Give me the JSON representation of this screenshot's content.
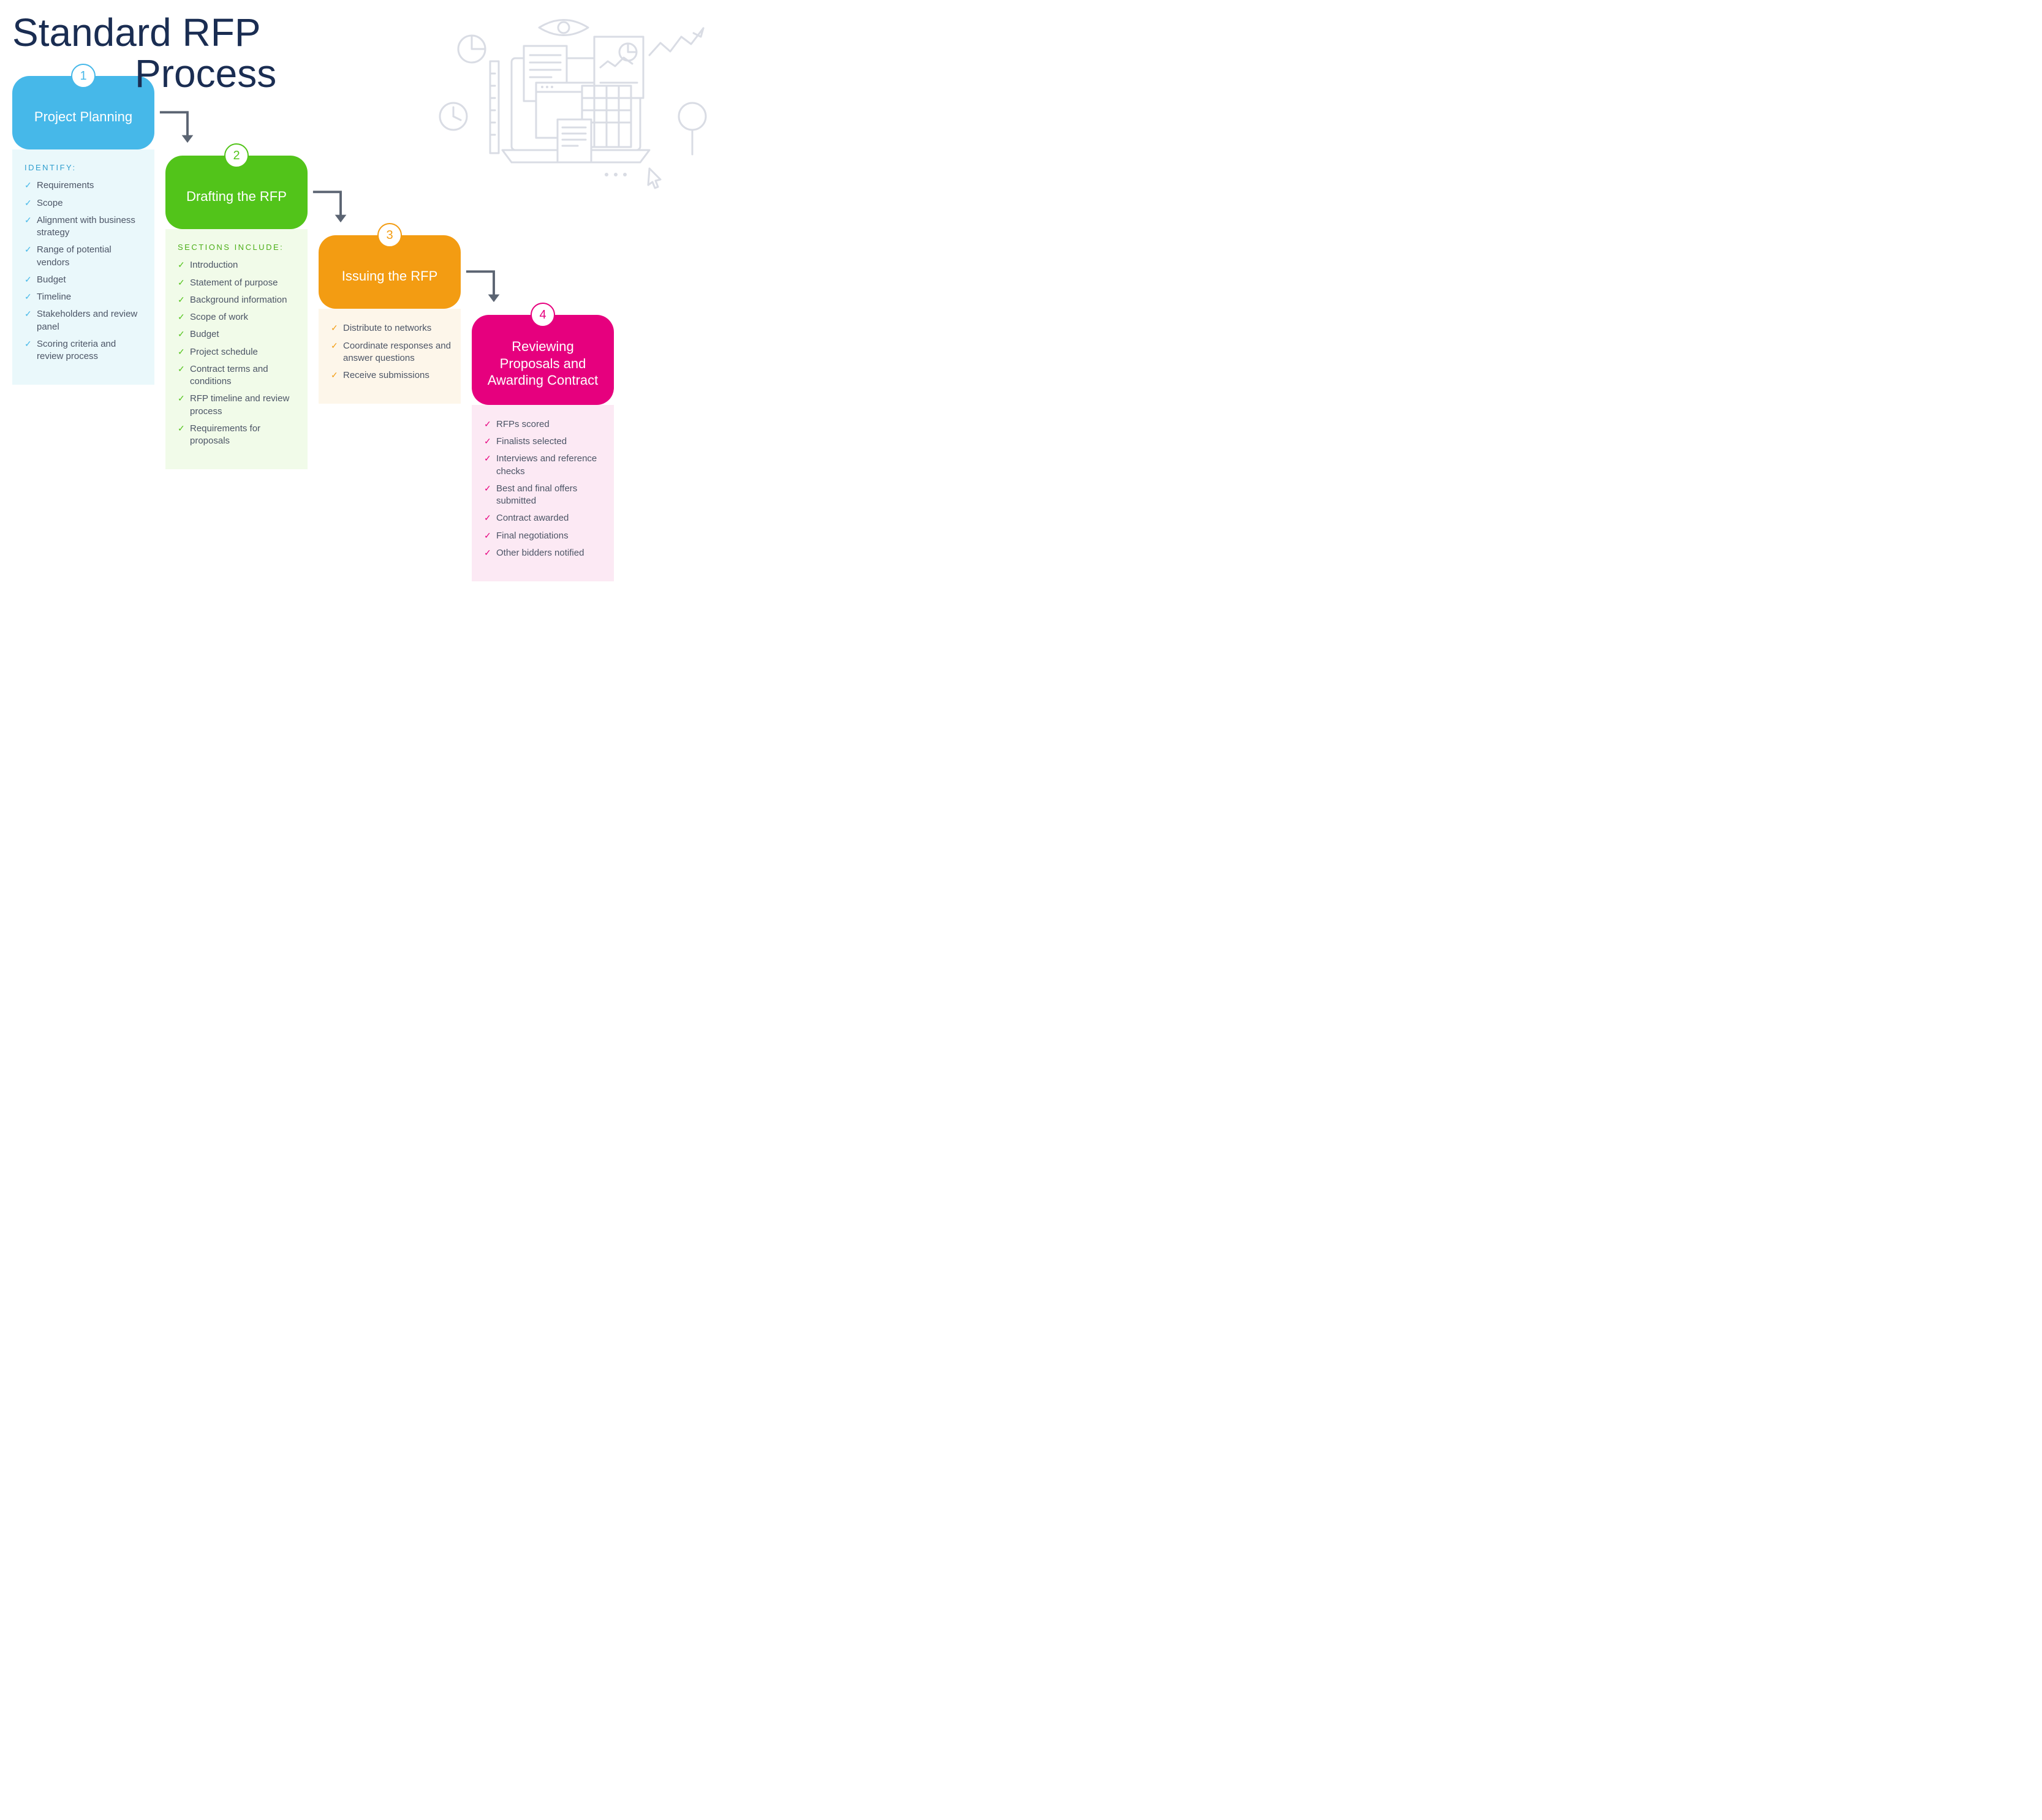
{
  "title": {
    "line1": "Standard RFP",
    "line2": "Process"
  },
  "title_color": "#1a2d52",
  "title_fontsize": 64,
  "title_fontweight": 300,
  "background_color": "#ffffff",
  "illustration_stroke": "#d9dce4",
  "arrow_color": "#5b6472",
  "arrow_stroke_width": 5,
  "card_border_radius": 28,
  "badge_diameter": 40,
  "body_text_color": "#4c5566",
  "stage_width": 232,
  "stage_vertical_step": 130,
  "layout": "staircase-4-columns",
  "stages": [
    {
      "number": "1",
      "heading": "Project Planning",
      "subhead": "IDENTIFY:",
      "items": [
        "Requirements",
        "Scope",
        "Alignment with business strategy",
        "Range of potential vendors",
        "Budget",
        "Timeline",
        "Stakeholders and review panel",
        "Scoring criteria and review process"
      ],
      "colors": {
        "head_bg": "#46b8e9",
        "badge_border": "#46b8e9",
        "badge_text": "#46b8e9",
        "body_bg": "#eaf8fb",
        "subhead_text": "#2f9ecf",
        "check": "#46b8e9"
      }
    },
    {
      "number": "2",
      "heading": "Drafting the RFP",
      "subhead": "SECTIONS INCLUDE:",
      "items": [
        "Introduction",
        "Statement of purpose",
        "Background information",
        "Scope of work",
        "Budget",
        "Project schedule",
        "Contract terms and conditions",
        "RFP timeline and review process",
        "Requirements for proposals"
      ],
      "colors": {
        "head_bg": "#52c41a",
        "badge_border": "#52c41a",
        "badge_text": "#52c41a",
        "body_bg": "#f1fbe9",
        "subhead_text": "#4cae18",
        "check": "#52c41a"
      }
    },
    {
      "number": "3",
      "heading": "Issuing the RFP",
      "subhead": "",
      "items": [
        "Distribute to networks",
        "Coordinate responses and answer questions",
        "Receive submissions"
      ],
      "colors": {
        "head_bg": "#f39c12",
        "badge_border": "#f39c12",
        "badge_text": "#f39c12",
        "body_bg": "#fdf6ea",
        "subhead_text": "#f39c12",
        "check": "#f39c12"
      }
    },
    {
      "number": "4",
      "heading": "Reviewing Proposals and Awarding Contract",
      "subhead": "",
      "items": [
        "RFPs scored",
        "Finalists selected",
        "Interviews and reference checks",
        "Best and final offers submitted",
        "Contract awarded",
        "Final negotiations",
        "Other bidders notified"
      ],
      "colors": {
        "head_bg": "#e6007e",
        "badge_border": "#e6007e",
        "badge_text": "#e6007e",
        "body_bg": "#fce9f4",
        "subhead_text": "#e6007e",
        "check": "#e6007e"
      }
    }
  ]
}
